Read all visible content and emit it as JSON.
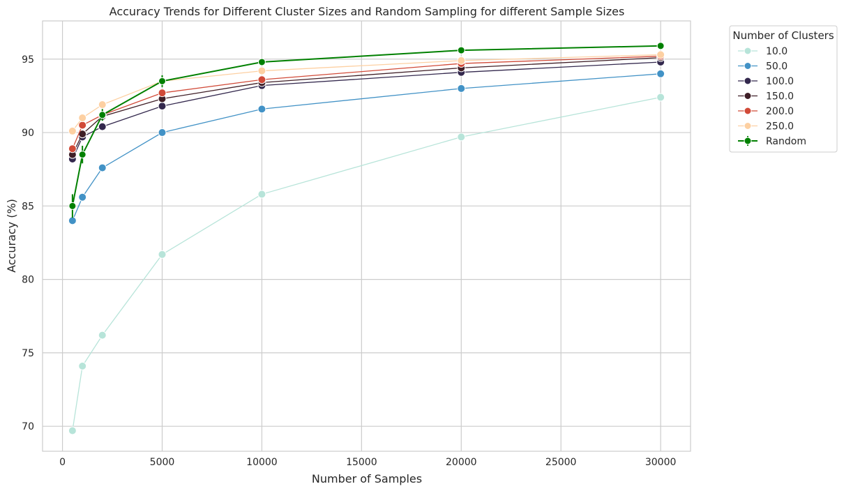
{
  "chart_data": {
    "type": "line",
    "title": "Accuracy Trends for Different Cluster Sizes and Random Sampling for different Sample Sizes",
    "xlabel": "Number of Samples",
    "ylabel": "Accuracy (%)",
    "xlim": [
      -1000,
      31500
    ],
    "ylim": [
      68.3,
      97.6
    ],
    "xticks": [
      0,
      5000,
      10000,
      15000,
      20000,
      25000,
      30000
    ],
    "yticks": [
      70,
      75,
      80,
      85,
      90,
      95
    ],
    "grid": true,
    "x": [
      500,
      1000,
      2000,
      5000,
      10000,
      20000,
      30000
    ],
    "legend": {
      "title": "Number of Clusters",
      "placement": "outside-top-right"
    },
    "series": [
      {
        "name": "10.0",
        "color": "#b7e4d9",
        "values": [
          69.7,
          74.1,
          76.2,
          81.7,
          85.8,
          89.7,
          92.4
        ]
      },
      {
        "name": "50.0",
        "color": "#4292c6",
        "values": [
          84.0,
          85.6,
          87.6,
          90.0,
          91.6,
          93.0,
          94.0
        ]
      },
      {
        "name": "100.0",
        "color": "#33284d",
        "values": [
          88.2,
          89.7,
          90.4,
          91.8,
          93.2,
          94.1,
          94.8
        ]
      },
      {
        "name": "150.0",
        "color": "#3f1f27",
        "values": [
          88.5,
          89.9,
          91.1,
          92.3,
          93.4,
          94.4,
          95.1
        ]
      },
      {
        "name": "200.0",
        "color": "#d14a38",
        "values": [
          88.9,
          90.5,
          91.2,
          92.7,
          93.6,
          94.7,
          95.2
        ]
      },
      {
        "name": "250.0",
        "color": "#fdd0a2",
        "values": [
          90.1,
          91.0,
          91.9,
          93.5,
          94.2,
          94.9,
          95.3
        ]
      },
      {
        "name": "Random",
        "color": "#008000",
        "values": [
          85.0,
          88.5,
          91.2,
          93.5,
          94.8,
          95.6,
          95.9
        ],
        "error": [
          0.8,
          0.6,
          0.4,
          0.4,
          0.2,
          0.15,
          0.25
        ]
      }
    ]
  }
}
